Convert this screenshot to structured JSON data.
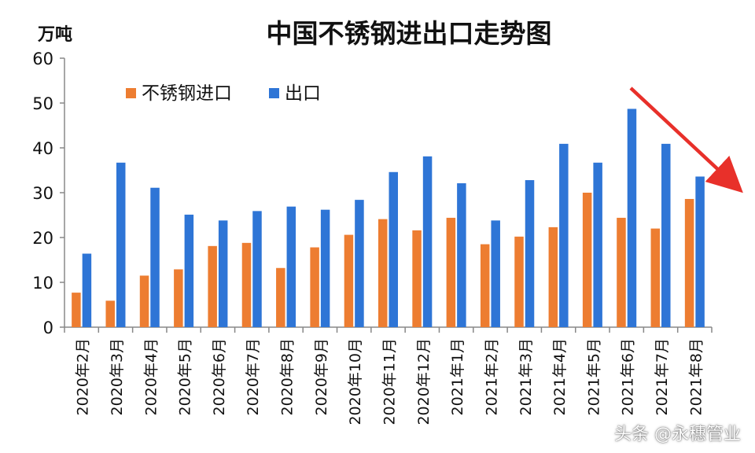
{
  "chart_data": {
    "type": "bar",
    "title": "中国不锈钢进出口走势图",
    "ylabel": "万吨",
    "ylim": [
      0,
      60
    ],
    "yticks": [
      0,
      10,
      20,
      30,
      40,
      50,
      60
    ],
    "legend_position": "top-left",
    "grid": false,
    "categories": [
      "2020年2月",
      "2020年3月",
      "2020年4月",
      "2020年5月",
      "2020年6月",
      "2020年7月",
      "2020年8月",
      "2020年9月",
      "2020年10月",
      "2020年11月",
      "2020年12月",
      "2021年1月",
      "2021年2月",
      "2021年3月",
      "2021年4月",
      "2021年5月",
      "2021年6月",
      "2021年7月",
      "2021年8月"
    ],
    "series": [
      {
        "name": "不锈钢进口",
        "color": "#ED7D31",
        "values": [
          7.7,
          5.9,
          11.5,
          12.9,
          18.1,
          18.8,
          13.2,
          17.8,
          20.6,
          24.1,
          21.6,
          24.4,
          18.5,
          20.2,
          22.3,
          30.0,
          24.4,
          22.0,
          28.6
        ]
      },
      {
        "name": "出口",
        "color": "#2E75D6",
        "values": [
          16.4,
          36.7,
          31.1,
          25.1,
          23.8,
          25.9,
          26.9,
          26.2,
          28.4,
          34.6,
          38.1,
          32.1,
          23.8,
          32.8,
          40.9,
          36.7,
          48.7,
          40.9,
          33.6
        ]
      }
    ],
    "annotation": {
      "type": "arrow",
      "color": "#E8302A",
      "direction": "down-right"
    }
  },
  "watermark": {
    "text": "头条 @永穗管业"
  }
}
